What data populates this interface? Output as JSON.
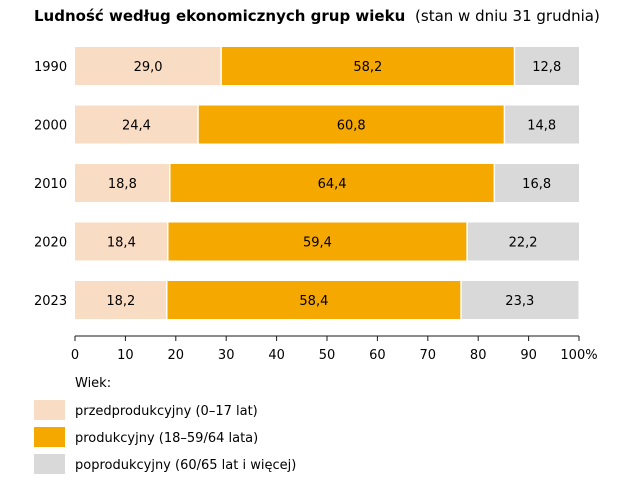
{
  "chart_data": {
    "type": "bar",
    "orientation": "horizontal",
    "stacked": true,
    "title": "Ludność według ekonomicznych grup wieku",
    "subtitle": "(stan w dniu 31 grudnia)",
    "categories": [
      "1990",
      "2000",
      "2010",
      "2020",
      "2023"
    ],
    "series": [
      {
        "name": "przedprodukcyjny (0–17 lat)",
        "color": "#f9dcc4",
        "values": [
          29.0,
          24.4,
          18.8,
          18.4,
          18.2
        ],
        "labels": [
          "29,0",
          "24,4",
          "18,8",
          "18,4",
          "18,2"
        ]
      },
      {
        "name": "produkcyjny (18–59/64 lata)",
        "color": "#f5a800",
        "values": [
          58.2,
          60.8,
          64.4,
          59.4,
          58.4
        ],
        "labels": [
          "58,2",
          "60,8",
          "64,4",
          "59,4",
          "58,4"
        ]
      },
      {
        "name": "poprodukcyjny (60/65 lat i więcej)",
        "color": "#d9d9d9",
        "values": [
          12.8,
          14.8,
          16.8,
          22.2,
          23.3
        ],
        "labels": [
          "12,8",
          "14,8",
          "16,8",
          "22,2",
          "23,3"
        ]
      }
    ],
    "xlim": [
      0,
      100
    ],
    "xticks": [
      "0",
      "10",
      "20",
      "30",
      "40",
      "50",
      "60",
      "70",
      "80",
      "90",
      "100%"
    ],
    "grid": false,
    "legend": {
      "title": "Wiek:",
      "placement": "bottom-left"
    }
  }
}
